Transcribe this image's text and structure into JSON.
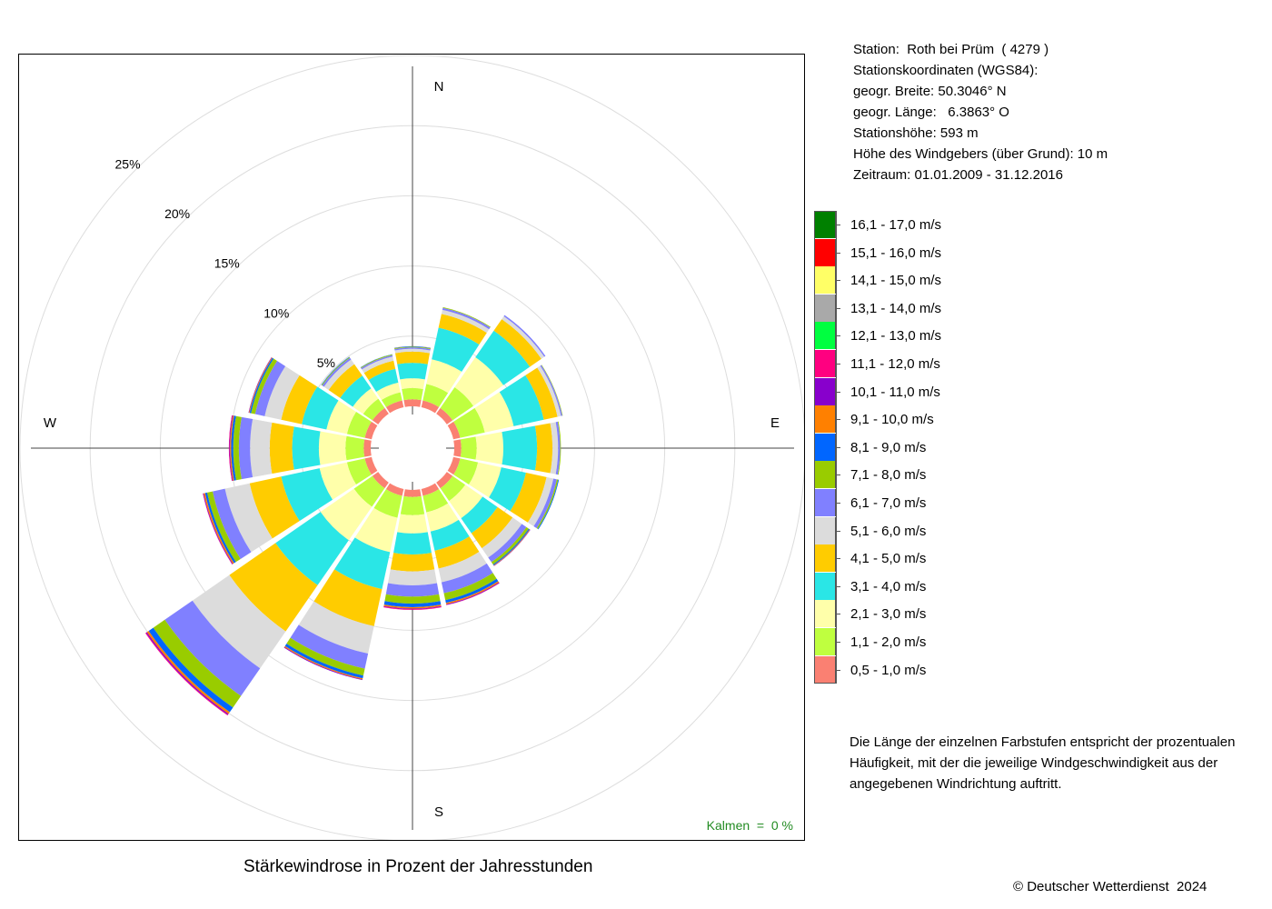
{
  "station": {
    "line1": "Station:  Roth bei Prüm  ( 4279 )",
    "line2": "Stationskoordinaten (WGS84):",
    "line3": "geogr. Breite: 50.3046° N",
    "line4": "geogr. Länge:   6.3863° O",
    "line5": "Stationshöhe: 593 m",
    "line6": "Höhe des Windgebers (über Grund): 10 m",
    "line7": "Zeitraum: 01.01.2009 - 31.12.2016"
  },
  "note": "Die Länge der einzelnen Farbstufen entspricht der prozentualen Häufigkeit, mit der die jeweilige Windgeschwindigkeit aus der angegebenen Windrichtung auftritt.",
  "copyright": "© Deutscher Wetterdienst  2024",
  "chart_data": {
    "type": "wind-rose",
    "title": "Stärkewindrose in Prozent der Jahresstunden",
    "calms": "Kalmen  =  0 %",
    "compass": {
      "N": "N",
      "E": "E",
      "S": "S",
      "W": "W"
    },
    "rings": [
      5,
      10,
      15,
      20,
      25
    ],
    "ring_labels": [
      "5%",
      "10%",
      "15%",
      "20%",
      "25%"
    ],
    "unit": "%",
    "bins": [
      {
        "label": "0,5 - 1,0 m/s",
        "color": "#FA8072"
      },
      {
        "label": "1,1 - 2,0 m/s",
        "color": "#BFFF3F"
      },
      {
        "label": "2,1 - 3,0 m/s",
        "color": "#FFFFAA"
      },
      {
        "label": "3,1 - 4,0 m/s",
        "color": "#2AE6E6"
      },
      {
        "label": "4,1 - 5,0 m/s",
        "color": "#FFCC00"
      },
      {
        "label": "5,1 - 6,0 m/s",
        "color": "#DCDCDC"
      },
      {
        "label": "6,1 - 7,0 m/s",
        "color": "#8080FF"
      },
      {
        "label": "7,1 - 8,0 m/s",
        "color": "#99CC00"
      },
      {
        "label": "8,1 - 9,0 m/s",
        "color": "#0066FF"
      },
      {
        "label": "9,1 - 10,0 m/s",
        "color": "#FF8000"
      },
      {
        "label": "10,1 - 11,0 m/s",
        "color": "#8800CC"
      },
      {
        "label": "11,1 - 12,0 m/s",
        "color": "#FF0080"
      },
      {
        "label": "12,1 - 13,0 m/s",
        "color": "#00FF40"
      },
      {
        "label": "13,1 - 14,0 m/s",
        "color": "#A9A9A9"
      },
      {
        "label": "14,1 - 15,0 m/s",
        "color": "#FFFF66"
      },
      {
        "label": "15,1 - 16,0 m/s",
        "color": "#FF0000"
      },
      {
        "label": "16,1 - 17,0 m/s",
        "color": "#008000"
      }
    ],
    "sectors": [
      {
        "direction": "N",
        "values": [
          0.5,
          0.8,
          0.7,
          1.1,
          0.8,
          0.2,
          0.1,
          0.05,
          0.03,
          0.01,
          0,
          0,
          0,
          0,
          0,
          0,
          0
        ]
      },
      {
        "direction": "NNE",
        "values": [
          0.5,
          1.2,
          1.8,
          2.3,
          1.0,
          0.3,
          0.15,
          0.05,
          0,
          0,
          0,
          0,
          0,
          0,
          0,
          0,
          0
        ]
      },
      {
        "direction": "NE",
        "values": [
          0.5,
          1.8,
          2.6,
          2.3,
          1.0,
          0.25,
          0.1,
          0,
          0,
          0,
          0,
          0,
          0,
          0,
          0,
          0,
          0
        ]
      },
      {
        "direction": "ENE",
        "values": [
          0.5,
          1.8,
          2.1,
          2.2,
          1.0,
          0.25,
          0.1,
          0.03,
          0,
          0,
          0,
          0,
          0,
          0,
          0,
          0,
          0
        ]
      },
      {
        "direction": "E",
        "values": [
          0.5,
          1.1,
          1.9,
          2.4,
          1.1,
          0.4,
          0.15,
          0.05,
          0,
          0,
          0,
          0,
          0,
          0,
          0,
          0,
          0
        ]
      },
      {
        "direction": "ESE",
        "values": [
          0.5,
          1.3,
          1.7,
          1.8,
          1.5,
          0.5,
          0.25,
          0.1,
          0.05,
          0,
          0,
          0,
          0,
          0,
          0,
          0,
          0
        ]
      },
      {
        "direction": "SE",
        "values": [
          0.5,
          1.1,
          1.5,
          1.3,
          1.3,
          0.8,
          0.4,
          0.2,
          0.08,
          0.04,
          0.02,
          0,
          0,
          0,
          0,
          0,
          0
        ]
      },
      {
        "direction": "SSE",
        "values": [
          0.5,
          1.2,
          1.4,
          1.4,
          1.3,
          1.0,
          0.8,
          0.5,
          0.2,
          0.1,
          0.05,
          0.02,
          0,
          0,
          0,
          0,
          0
        ]
      },
      {
        "direction": "S",
        "values": [
          0.5,
          1.3,
          1.3,
          1.5,
          1.2,
          1.0,
          0.8,
          0.5,
          0.25,
          0.1,
          0.05,
          0.05,
          0,
          0,
          0,
          0,
          0
        ]
      },
      {
        "direction": "SSW",
        "values": [
          0.5,
          1.6,
          2.5,
          2.7,
          2.7,
          2.0,
          1.1,
          0.5,
          0.2,
          0.08,
          0.05,
          0,
          0,
          0,
          0,
          0,
          0
        ]
      },
      {
        "direction": "SW",
        "values": [
          0.5,
          1.6,
          2.9,
          3.9,
          4.0,
          3.2,
          2.4,
          1.0,
          0.4,
          0.15,
          0.08,
          0.05,
          0,
          0,
          0,
          0,
          0
        ]
      },
      {
        "direction": "WSW",
        "values": [
          0.5,
          1.3,
          2.0,
          2.8,
          2.3,
          1.8,
          0.9,
          0.4,
          0.15,
          0.1,
          0.05,
          0.02,
          0,
          0,
          0,
          0,
          0
        ]
      },
      {
        "direction": "W",
        "values": [
          0.5,
          1.3,
          1.9,
          1.9,
          1.6,
          1.4,
          0.8,
          0.4,
          0.15,
          0.08,
          0.05,
          0.03,
          0,
          0,
          0,
          0,
          0
        ]
      },
      {
        "direction": "WNW",
        "values": [
          0.5,
          1.3,
          1.5,
          1.8,
          1.5,
          1.2,
          0.7,
          0.3,
          0.1,
          0.05,
          0.03,
          0,
          0,
          0,
          0,
          0,
          0
        ]
      },
      {
        "direction": "NW",
        "values": [
          0.5,
          0.8,
          0.9,
          1.1,
          1.0,
          0.4,
          0.15,
          0.06,
          0.03,
          0,
          0,
          0,
          0,
          0,
          0,
          0,
          0
        ]
      },
      {
        "direction": "NNW",
        "values": [
          0.5,
          0.6,
          0.7,
          1.0,
          0.6,
          0.3,
          0.1,
          0.05,
          0.02,
          0,
          0,
          0,
          0,
          0,
          0,
          0,
          0
        ]
      }
    ]
  }
}
